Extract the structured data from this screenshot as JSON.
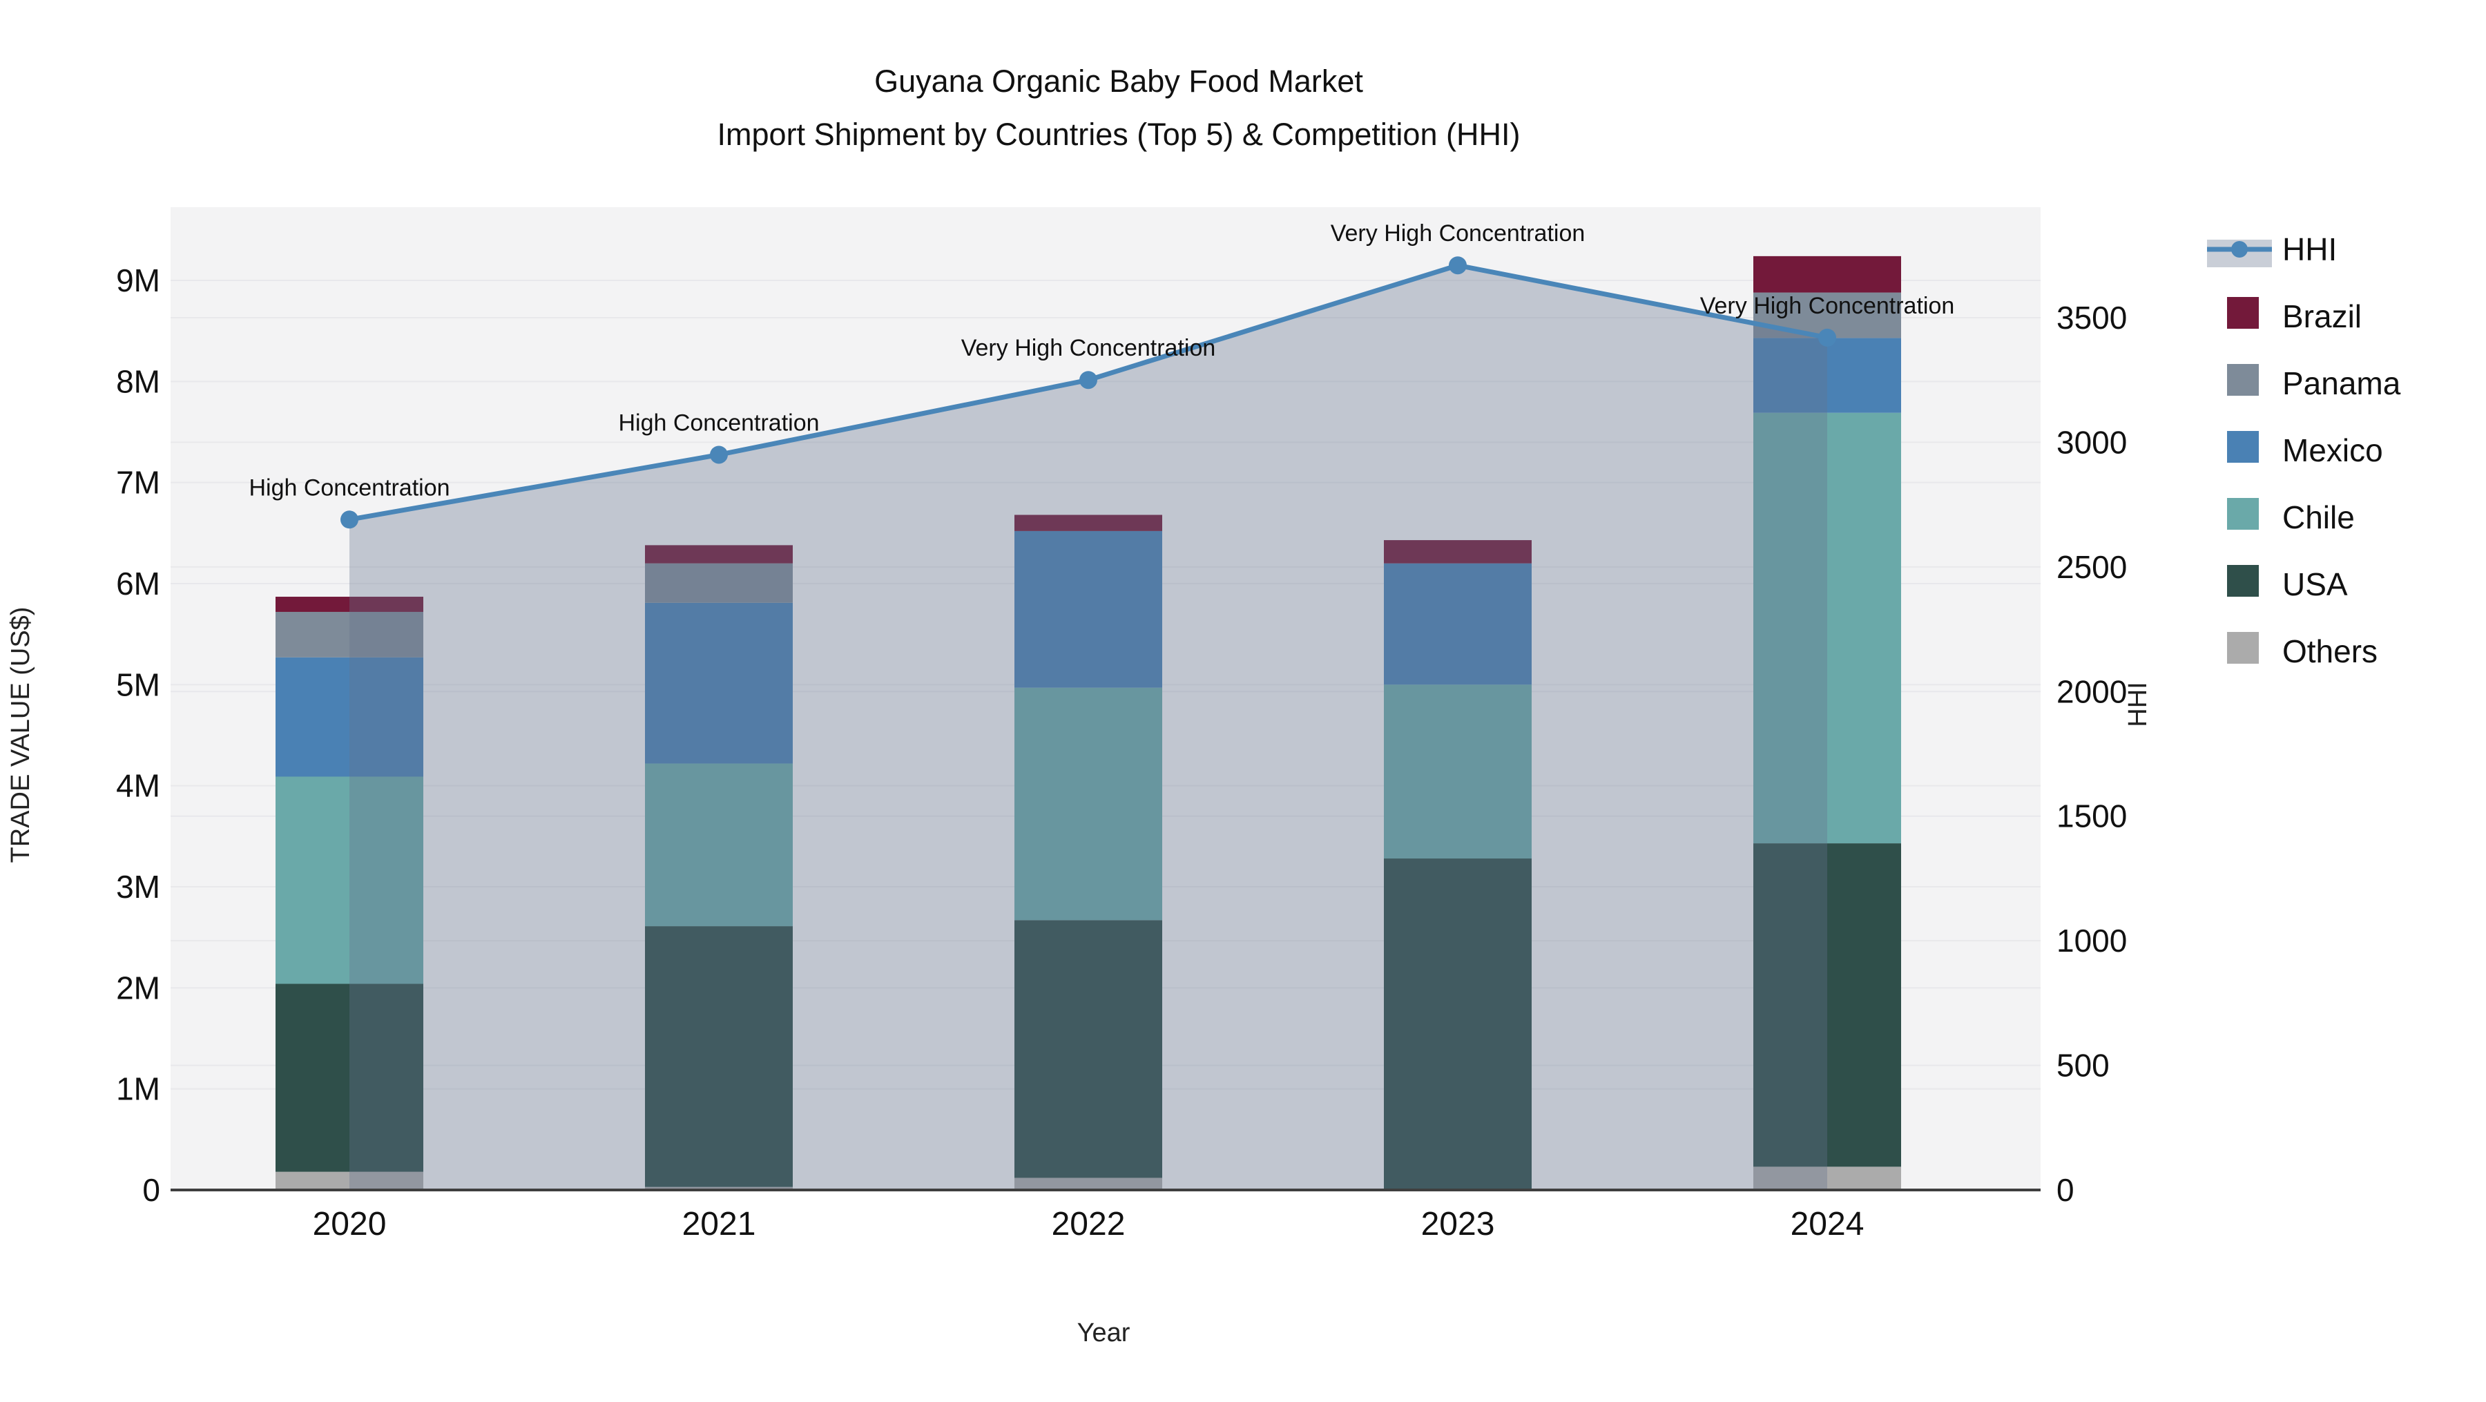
{
  "chart_data": {
    "type": "bar+line",
    "title_line1": "Guyana Organic Baby Food Market",
    "title_line2": "Import Shipment by Countries (Top 5) & Competition (HHI)",
    "xlabel": "Year",
    "ylabel_left": "TRADE VALUE (US$)",
    "ylabel_right": "HHI",
    "categories": [
      "2020",
      "2021",
      "2022",
      "2023",
      "2024"
    ],
    "stack_note": "stacked bar values in millions of US$, stacked bottom-to-top: Others, USA, Chile, Mexico, Panama, Brazil",
    "series": [
      {
        "name": "Brazil",
        "color": "#73193a",
        "values": [
          0.15,
          0.18,
          0.16,
          0.23,
          0.36
        ]
      },
      {
        "name": "Panama",
        "color": "#7e8b99",
        "values": [
          0.45,
          0.39,
          0.0,
          0.0,
          0.45
        ]
      },
      {
        "name": "Mexico",
        "color": "#4a81b4",
        "values": [
          1.18,
          1.59,
          1.55,
          1.2,
          0.74
        ]
      },
      {
        "name": "Chile",
        "color": "#6aa9a9",
        "values": [
          2.05,
          1.61,
          2.3,
          1.72,
          4.26
        ]
      },
      {
        "name": "USA",
        "color": "#2f4f4a",
        "values": [
          1.86,
          2.58,
          2.55,
          3.28,
          3.2
        ]
      },
      {
        "name": "Others",
        "color": "#ababab",
        "values": [
          0.18,
          0.03,
          0.12,
          0.0,
          0.23
        ]
      }
    ],
    "bar_totals_musd": [
      5.87,
      6.38,
      6.68,
      6.43,
      9.24
    ],
    "hhi": {
      "name": "HHI",
      "line_color": "#4a86b8",
      "area_color": "rgba(100,115,140,0.35)",
      "values": [
        2690,
        2950,
        3250,
        3710,
        3420
      ]
    },
    "annotations": [
      "High Concentration",
      "High Concentration",
      "Very High Concentration",
      "Very High Concentration",
      "Very High Concentration"
    ],
    "y_left_ticks": {
      "labels": [
        "0",
        "1M",
        "2M",
        "3M",
        "4M",
        "5M",
        "6M",
        "7M",
        "8M",
        "9M"
      ],
      "values": [
        0,
        1,
        2,
        3,
        4,
        5,
        6,
        7,
        8,
        9
      ]
    },
    "y_right_ticks": {
      "labels": [
        "0",
        "500",
        "1000",
        "1500",
        "2000",
        "2500",
        "3000",
        "3500"
      ],
      "values": [
        0,
        500,
        1000,
        1500,
        2000,
        2500,
        3000,
        3500
      ]
    },
    "ylim_left_musd": [
      0,
      9.0
    ],
    "ylim_right_hhi": [
      0,
      3500
    ],
    "grid": true,
    "legend_position": "top-right",
    "legend_order": [
      "HHI",
      "Brazil",
      "Panama",
      "Mexico",
      "Chile",
      "USA",
      "Others"
    ],
    "colors": {
      "plot_background": "#f3f3f4",
      "gridline": "#e8e8eb",
      "axis_line": "#3f3f3f",
      "text": "#111111"
    }
  }
}
